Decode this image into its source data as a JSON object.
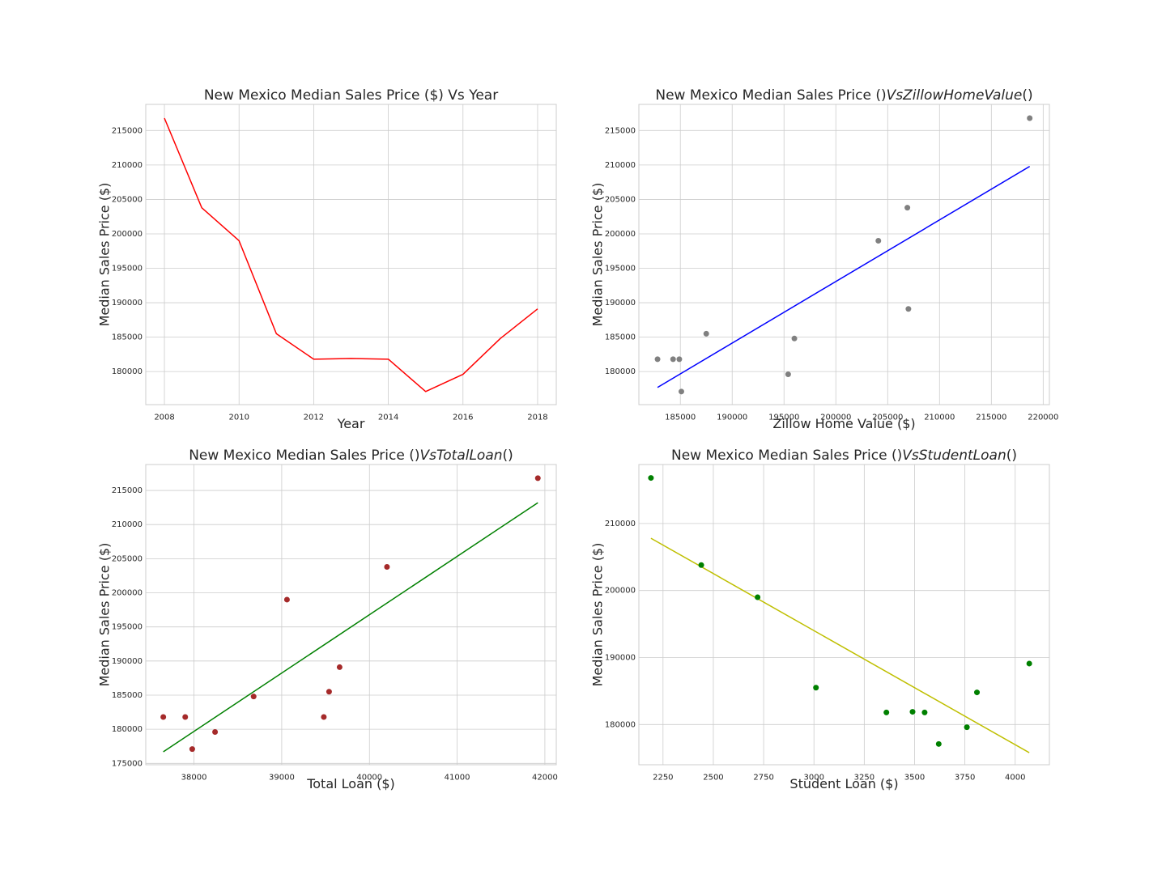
{
  "chart_data": [
    {
      "type": "line",
      "title": "New Mexico Median Sales Price ($) Vs Year",
      "xlabel": "Year",
      "ylabel": "Median Sales Price ($)",
      "xlim": [
        2007.5,
        2018.5
      ],
      "ylim": [
        175200,
        218800
      ],
      "xticks": [
        2008,
        2010,
        2012,
        2014,
        2016,
        2018
      ],
      "yticks": [
        180000,
        185000,
        190000,
        195000,
        200000,
        205000,
        210000,
        215000
      ],
      "grid": true,
      "color": "#ff0000",
      "series": [
        {
          "x": [
            2008,
            2009,
            2010,
            2011,
            2012,
            2013,
            2014,
            2015,
            2016,
            2017,
            2018
          ],
          "y": [
            216800,
            203800,
            199000,
            185500,
            181800,
            181900,
            181800,
            177100,
            179600,
            184800,
            189100
          ]
        }
      ]
    },
    {
      "type": "scatter",
      "title": "New Mexico Median Sales Price ()",
      "title_math": "VsZillowHomeValue",
      "title_end": "()",
      "xlabel": "Zillow Home Value ($)",
      "ylabel": "Median Sales Price ($)",
      "xlim": [
        181000,
        220600
      ],
      "ylim": [
        175200,
        218800
      ],
      "xticks": [
        185000,
        190000,
        195000,
        200000,
        205000,
        210000,
        215000,
        220000
      ],
      "yticks": [
        180000,
        185000,
        190000,
        195000,
        200000,
        205000,
        210000,
        215000
      ],
      "grid": true,
      "point_color": "#808080",
      "line_color": "#0000ff",
      "points": {
        "x": [
          182800,
          184300,
          184900,
          185100,
          187500,
          195400,
          196000,
          204100,
          206900,
          207000,
          218700
        ],
        "y": [
          181800,
          181800,
          181800,
          177100,
          185500,
          179600,
          184800,
          199000,
          203800,
          189100,
          216800
        ]
      },
      "fit_line": {
        "x": [
          182800,
          218700
        ],
        "y": [
          177700,
          209800
        ]
      }
    },
    {
      "type": "scatter",
      "title": "New Mexico Median Sales Price ()",
      "title_math": "VsTotalLoan",
      "title_end": "()",
      "xlabel": "Total Loan ($)",
      "ylabel": "Median Sales Price ($)",
      "xlim": [
        37450,
        42130
      ],
      "ylim": [
        174800,
        218800
      ],
      "xticks": [
        38000,
        39000,
        40000,
        41000,
        42000
      ],
      "yticks": [
        175000,
        180000,
        185000,
        190000,
        195000,
        200000,
        205000,
        210000,
        215000
      ],
      "grid": true,
      "point_color": "#a52a2a",
      "line_color": "#008000",
      "points": {
        "x": [
          37650,
          37900,
          37980,
          38240,
          38680,
          39060,
          39480,
          39540,
          39660,
          40200,
          41920
        ],
        "y": [
          181800,
          181800,
          177100,
          179600,
          184800,
          199000,
          181800,
          185500,
          189100,
          203800,
          216800
        ]
      },
      "fit_line": {
        "x": [
          37650,
          41920
        ],
        "y": [
          176700,
          213200
        ]
      }
    },
    {
      "type": "scatter",
      "title": "New Mexico Median Sales Price ()",
      "title_math": "VsStudentLoan",
      "title_end": "()",
      "xlabel": "Student Loan ($)",
      "ylabel": "Median Sales Price ($)",
      "xlim": [
        2130,
        4170
      ],
      "ylim": [
        174000,
        218800
      ],
      "xticks": [
        2250,
        2500,
        2750,
        3000,
        3250,
        3500,
        3750,
        4000
      ],
      "yticks": [
        180000,
        190000,
        200000,
        210000
      ],
      "grid": true,
      "point_color": "#008000",
      "line_color": "#bfbf00",
      "points": {
        "x": [
          2190,
          2440,
          2720,
          3010,
          3360,
          3490,
          3550,
          3620,
          3760,
          3810,
          4070
        ],
        "y": [
          216800,
          203800,
          199000,
          185500,
          181800,
          181900,
          181800,
          177100,
          179600,
          184800,
          189100
        ]
      },
      "fit_line": {
        "x": [
          2190,
          4070
        ],
        "y": [
          207800,
          175800
        ]
      }
    }
  ]
}
